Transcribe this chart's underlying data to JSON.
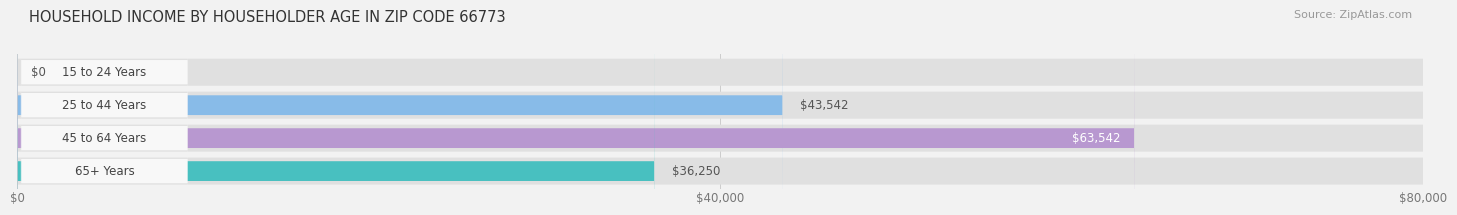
{
  "title": "HOUSEHOLD INCOME BY HOUSEHOLDER AGE IN ZIP CODE 66773",
  "source": "Source: ZipAtlas.com",
  "categories": [
    "15 to 24 Years",
    "25 to 44 Years",
    "45 to 64 Years",
    "65+ Years"
  ],
  "values": [
    0,
    43542,
    63542,
    36250
  ],
  "bar_colors": [
    "#f0a0a0",
    "#88bbe8",
    "#b898d0",
    "#48c0c0"
  ],
  "bar_labels": [
    "$0",
    "$43,542",
    "$63,542",
    "$36,250"
  ],
  "label_inside": [
    false,
    false,
    true,
    false
  ],
  "xlim_max": 80000,
  "xtick_vals": [
    0,
    40000,
    80000
  ],
  "xtick_labels": [
    "$0",
    "$40,000",
    "$80,000"
  ],
  "bg_color": "#f2f2f2",
  "bar_bg_color": "#e0e0e0",
  "pill_bg_color": "#f8f8f8",
  "title_fontsize": 10.5,
  "source_fontsize": 8,
  "cat_fontsize": 8.5,
  "val_fontsize": 8.5,
  "tick_fontsize": 8.5
}
